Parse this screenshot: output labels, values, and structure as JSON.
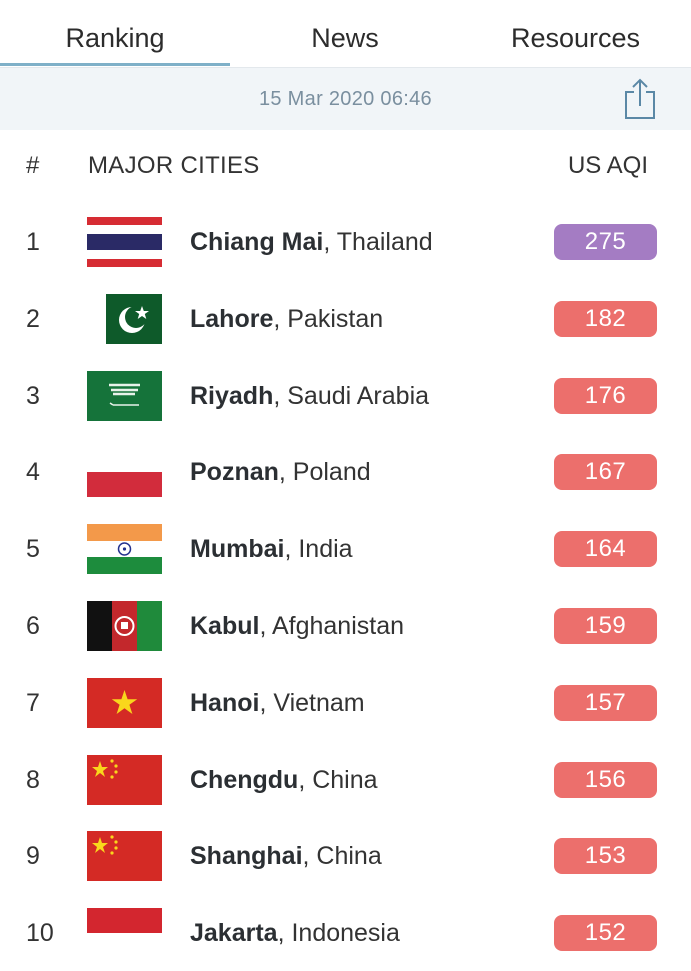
{
  "tabs": [
    {
      "label": "Ranking",
      "active": true
    },
    {
      "label": "News",
      "active": false
    },
    {
      "label": "Resources",
      "active": false
    }
  ],
  "date": "15 Mar 2020 06:46",
  "share_icon": "share-icon",
  "header": {
    "num": "#",
    "city": "MAJOR CITIES",
    "aqi": "US AQI"
  },
  "colors": {
    "very_unhealthy": "#a47cc3",
    "unhealthy": "#ec6f6c",
    "tab_accent": "#7fb0c8"
  },
  "rows": [
    {
      "rank": "1",
      "city": "Chiang Mai",
      "country": ", Thailand",
      "aqi": "275",
      "level": "very_unhealthy",
      "flag": "thailand"
    },
    {
      "rank": "2",
      "city": "Lahore",
      "country": ", Pakistan",
      "aqi": "182",
      "level": "unhealthy",
      "flag": "pakistan"
    },
    {
      "rank": "3",
      "city": "Riyadh",
      "country": ", Saudi Arabia",
      "aqi": "176",
      "level": "unhealthy",
      "flag": "saudi-arabia"
    },
    {
      "rank": "4",
      "city": "Poznan",
      "country": ", Poland",
      "aqi": "167",
      "level": "unhealthy",
      "flag": "poland"
    },
    {
      "rank": "5",
      "city": "Mumbai",
      "country": ", India",
      "aqi": "164",
      "level": "unhealthy",
      "flag": "india"
    },
    {
      "rank": "6",
      "city": "Kabul",
      "country": ", Afghanistan",
      "aqi": "159",
      "level": "unhealthy",
      "flag": "afghanistan"
    },
    {
      "rank": "7",
      "city": "Hanoi",
      "country": ", Vietnam",
      "aqi": "157",
      "level": "unhealthy",
      "flag": "vietnam"
    },
    {
      "rank": "8",
      "city": "Chengdu",
      "country": ", China",
      "aqi": "156",
      "level": "unhealthy",
      "flag": "china"
    },
    {
      "rank": "9",
      "city": "Shanghai",
      "country": ", China",
      "aqi": "153",
      "level": "unhealthy",
      "flag": "china"
    },
    {
      "rank": "10",
      "city": "Jakarta",
      "country": ", Indonesia",
      "aqi": "152",
      "level": "unhealthy",
      "flag": "indonesia"
    }
  ]
}
